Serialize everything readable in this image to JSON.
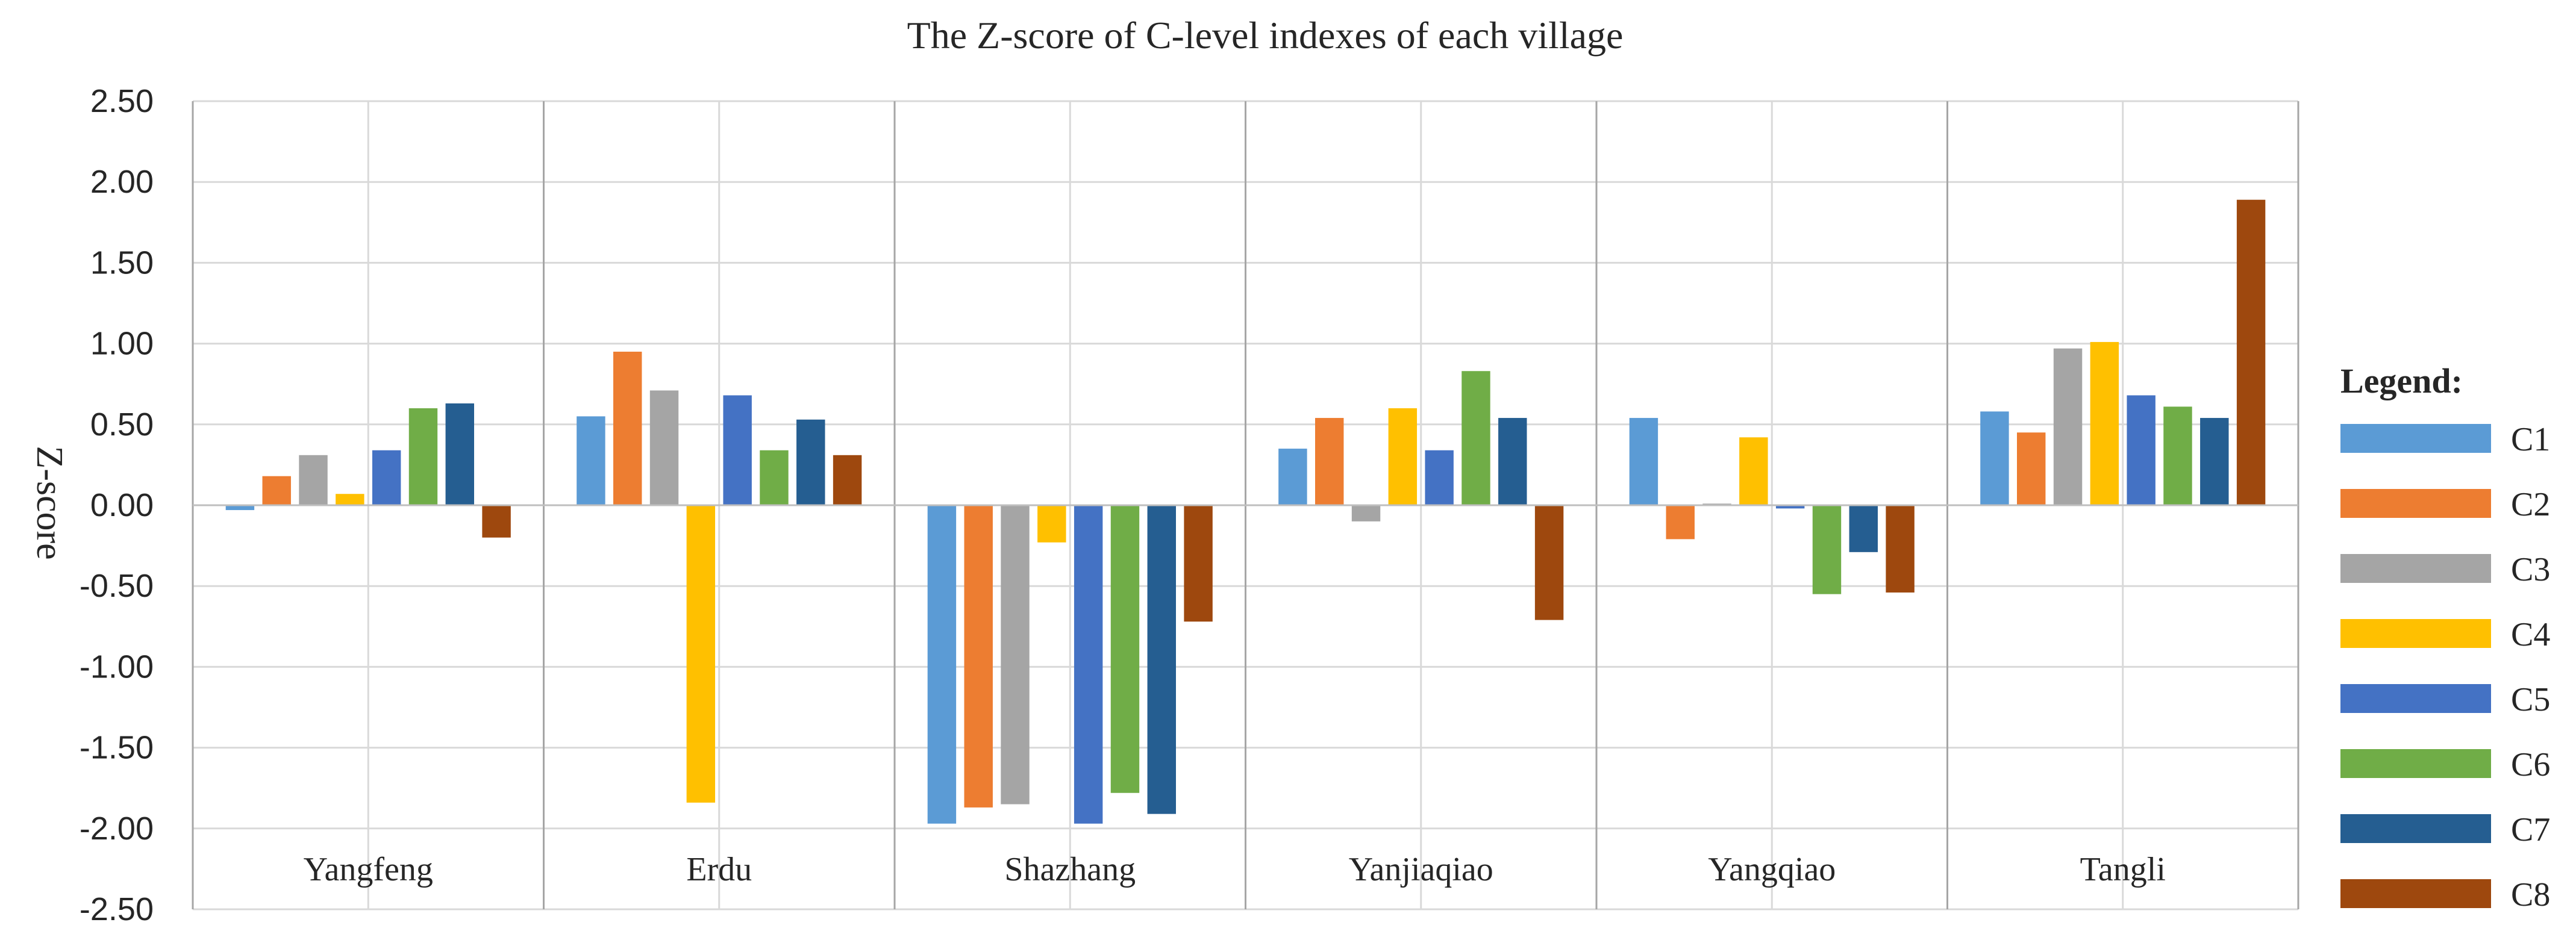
{
  "chart_data": {
    "type": "bar",
    "title": "The Z-score of C-level indexes of each village",
    "xlabel": "",
    "ylabel": "Z-score",
    "ylim": [
      -2.5,
      2.5
    ],
    "yticks": [
      "2.50",
      "2.00",
      "1.50",
      "1.00",
      "0.50",
      "0.00",
      "-0.50",
      "-1.00",
      "-1.50",
      "-2.00",
      "-2.50"
    ],
    "categories": [
      "Yangfeng",
      "Erdu",
      "Shazhang",
      "Yanjiaqiao",
      "Yangqiao",
      "Tangli"
    ],
    "grid": true,
    "legend_title": "Legend:",
    "legend_position": "right",
    "series": [
      {
        "name": "C1",
        "color": "#5B9BD5",
        "values": [
          -0.03,
          0.55,
          -1.97,
          0.35,
          0.54,
          0.58
        ]
      },
      {
        "name": "C2",
        "color": "#ED7D31",
        "values": [
          0.18,
          0.95,
          -1.87,
          0.54,
          -0.21,
          0.45
        ]
      },
      {
        "name": "C3",
        "color": "#A5A5A5",
        "values": [
          0.31,
          0.71,
          -1.85,
          -0.1,
          0.01,
          0.97
        ]
      },
      {
        "name": "C4",
        "color": "#FFC000",
        "values": [
          0.07,
          -1.84,
          -0.23,
          0.6,
          0.42,
          1.01
        ]
      },
      {
        "name": "C5",
        "color": "#4472C4",
        "values": [
          0.34,
          0.68,
          -1.97,
          0.34,
          -0.02,
          0.68
        ]
      },
      {
        "name": "C6",
        "color": "#70AD47",
        "values": [
          0.6,
          0.34,
          -1.78,
          0.83,
          -0.55,
          0.61
        ]
      },
      {
        "name": "C7",
        "color": "#255E91",
        "values": [
          0.63,
          0.53,
          -1.91,
          0.54,
          -0.29,
          0.54
        ]
      },
      {
        "name": "C8",
        "color": "#9E480E",
        "values": [
          -0.2,
          0.31,
          -0.72,
          -0.71,
          -0.54,
          1.89
        ]
      }
    ]
  }
}
